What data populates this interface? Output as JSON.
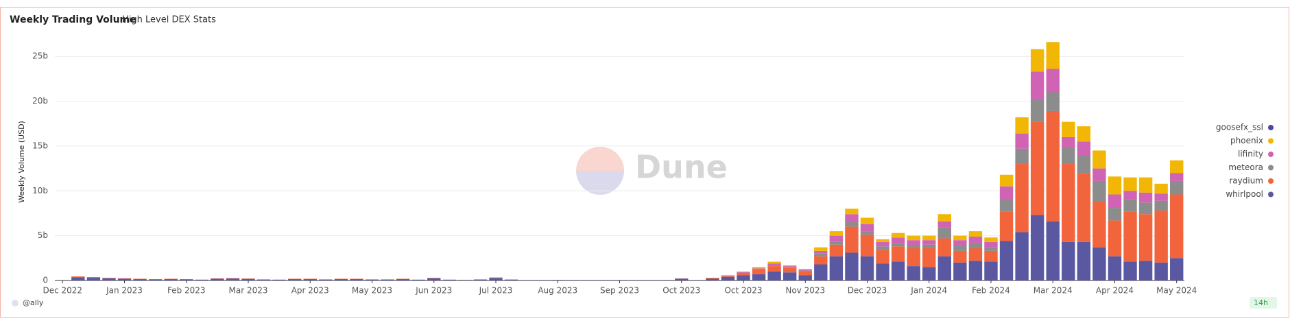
{
  "chart_data": {
    "type": "bar",
    "stacked": true,
    "title": "Weekly Trading Volume",
    "subtitle": "High Level DEX Stats",
    "y_label": "Weekly Volume (USD)",
    "watermark": "Dune",
    "author": "@ally",
    "age": "14h",
    "grid": true,
    "legend": "right",
    "ylim": [
      0,
      28
    ],
    "yticks": [
      0,
      {
        "value": 5,
        "label": "5b"
      },
      {
        "value": 10,
        "label": "10b"
      },
      {
        "value": 15,
        "label": "15b"
      },
      {
        "value": 20,
        "label": "20b"
      },
      {
        "value": 25,
        "label": "25b"
      }
    ],
    "categories": [
      "Dec 2022",
      null,
      null,
      null,
      "Jan 2023",
      null,
      null,
      null,
      "Feb 2023",
      null,
      null,
      null,
      "Mar 2023",
      null,
      null,
      null,
      "Apr 2023",
      null,
      null,
      null,
      "May 2023",
      null,
      null,
      null,
      "Jun 2023",
      null,
      null,
      null,
      "Jul 2023",
      null,
      null,
      null,
      "Aug 2023",
      null,
      null,
      null,
      "Sep 2023",
      null,
      null,
      null,
      "Oct 2023",
      null,
      null,
      null,
      "Oct 2023",
      null,
      null,
      null,
      "Nov 2023",
      null,
      null,
      null,
      "Dec 2023",
      null,
      null,
      null,
      "Jan 2024",
      null,
      null,
      null,
      "Feb 2024",
      null,
      null,
      null,
      "Mar 2024",
      null,
      null,
      null,
      "Apr 2024",
      null,
      null,
      null,
      "May 2024"
    ],
    "series": [
      {
        "name": "whirlpool",
        "color": "#5b58a2",
        "values": [
          0,
          0.35,
          0.3,
          0.25,
          0.2,
          0.15,
          0.12,
          0.15,
          0.12,
          0.08,
          0.2,
          0.22,
          0.18,
          0.1,
          0.08,
          0.15,
          0.15,
          0.1,
          0.15,
          0.15,
          0.1,
          0.1,
          0.15,
          0.08,
          0.25,
          0.08,
          0.06,
          0.1,
          0.28,
          0.1,
          0.05,
          0.05,
          0.06,
          0.05,
          0.05,
          0.05,
          0.05,
          0.05,
          0.05,
          0.05,
          0.2,
          0.05,
          0.2,
          0.4,
          0.6,
          0.7,
          1.0,
          0.9,
          0.6,
          1.8,
          2.7,
          3.1,
          2.7,
          1.9,
          2.1,
          1.6,
          1.5,
          2.7,
          2.0,
          2.2,
          2.1,
          4.4,
          5.4,
          7.3,
          6.6,
          4.3,
          4.3,
          3.7,
          2.7,
          2.1,
          2.2,
          2.0,
          2.5
        ]
      },
      {
        "name": "raydium",
        "color": "#f2643c",
        "values": [
          0,
          0.1,
          0.08,
          0.05,
          0.05,
          0.04,
          0.03,
          0.04,
          0.03,
          0.02,
          0.04,
          0.05,
          0.04,
          0.03,
          0.02,
          0.04,
          0.04,
          0.03,
          0.04,
          0.04,
          0.03,
          0.03,
          0.04,
          0.02,
          0.05,
          0.02,
          0.02,
          0.03,
          0.06,
          0.02,
          0.01,
          0.01,
          0.01,
          0.01,
          0.01,
          0.01,
          0.01,
          0.01,
          0.01,
          0.01,
          0.03,
          0.01,
          0.1,
          0.1,
          0.25,
          0.5,
          0.6,
          0.5,
          0.4,
          0.9,
          1.3,
          2.9,
          2.4,
          1.5,
          1.7,
          2.0,
          2.1,
          2.0,
          1.3,
          1.4,
          1.2,
          3.3,
          7.6,
          10.4,
          12.3,
          8.7,
          7.7,
          5.1,
          4.0,
          5.6,
          5.2,
          5.8,
          7.1
        ]
      },
      {
        "name": "meteora",
        "color": "#8c8c8c",
        "values": [
          0,
          0,
          0,
          0,
          0,
          0,
          0,
          0,
          0,
          0,
          0,
          0,
          0,
          0,
          0,
          0,
          0,
          0,
          0,
          0,
          0,
          0,
          0,
          0,
          0,
          0,
          0,
          0,
          0,
          0,
          0,
          0,
          0,
          0,
          0,
          0,
          0,
          0,
          0,
          0,
          0,
          0,
          0,
          0,
          0,
          0,
          0.1,
          0.1,
          0.1,
          0.3,
          0.3,
          0.5,
          0.4,
          0.4,
          0.3,
          0.3,
          0.4,
          1.2,
          0.6,
          0.6,
          0.4,
          1.4,
          1.7,
          2.5,
          2.1,
          1.8,
          2.0,
          2.3,
          1.4,
          1.3,
          1.3,
          1.1,
          1.5
        ]
      },
      {
        "name": "lifinity",
        "color": "#d063b4",
        "values": [
          0,
          0,
          0,
          0,
          0,
          0,
          0,
          0,
          0,
          0,
          0,
          0,
          0,
          0,
          0,
          0,
          0,
          0,
          0,
          0,
          0,
          0,
          0,
          0,
          0,
          0,
          0,
          0,
          0,
          0,
          0,
          0,
          0,
          0,
          0,
          0,
          0,
          0,
          0,
          0,
          0,
          0,
          0,
          0.05,
          0.1,
          0.15,
          0.2,
          0.1,
          0.1,
          0.3,
          0.7,
          0.9,
          0.8,
          0.5,
          0.7,
          0.6,
          0.5,
          0.7,
          0.6,
          0.7,
          0.6,
          1.4,
          1.7,
          3.1,
          2.6,
          1.2,
          1.5,
          1.4,
          1.5,
          1.0,
          1.1,
          0.8,
          0.9
        ]
      },
      {
        "name": "phoenix",
        "color": "#f2b705",
        "values": [
          0,
          0,
          0,
          0,
          0,
          0,
          0,
          0,
          0,
          0,
          0,
          0,
          0,
          0,
          0,
          0,
          0,
          0,
          0,
          0,
          0,
          0,
          0,
          0,
          0,
          0,
          0,
          0,
          0,
          0,
          0,
          0,
          0,
          0,
          0,
          0,
          0,
          0,
          0,
          0,
          0,
          0,
          0,
          0.05,
          0.05,
          0.15,
          0.2,
          0.1,
          0.1,
          0.4,
          0.5,
          0.6,
          0.7,
          0.3,
          0.5,
          0.5,
          0.5,
          0.8,
          0.5,
          0.6,
          0.5,
          1.3,
          1.8,
          2.5,
          3.0,
          1.7,
          1.7,
          2.0,
          2.0,
          1.5,
          1.7,
          1.1,
          1.4
        ]
      },
      {
        "name": "goosefx_ssl",
        "color": "#4a4a9c",
        "values": [
          0,
          0,
          0,
          0,
          0,
          0,
          0,
          0,
          0,
          0,
          0,
          0,
          0,
          0,
          0,
          0,
          0,
          0,
          0,
          0,
          0,
          0,
          0,
          0,
          0,
          0,
          0,
          0,
          0,
          0,
          0,
          0,
          0,
          0,
          0,
          0,
          0,
          0,
          0,
          0,
          0,
          0,
          0,
          0,
          0,
          0,
          0,
          0,
          0,
          0,
          0,
          0,
          0,
          0,
          0,
          0,
          0,
          0,
          0,
          0,
          0,
          0,
          0,
          0,
          0,
          0,
          0,
          0,
          0,
          0,
          0,
          0,
          0
        ]
      }
    ]
  }
}
